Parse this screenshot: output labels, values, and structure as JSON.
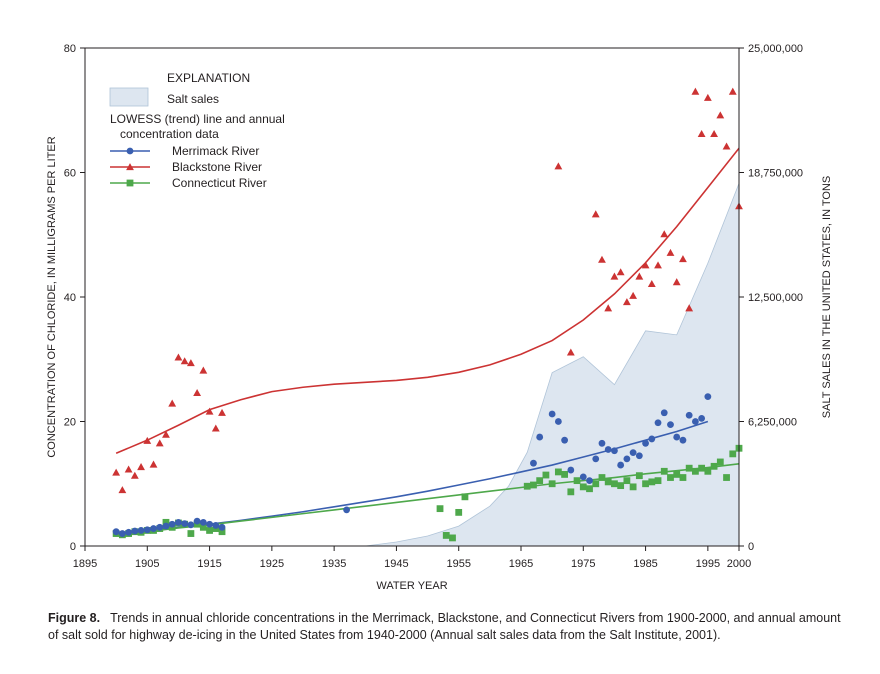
{
  "chart_data": {
    "type": "scatter",
    "xlabel": "WATER YEAR",
    "ylabel": "CONCENTRATION OF CHLORIDE, IN MILLIGRAMS PER LITER",
    "y2label": "SALT SALES IN THE UNITED STATES, IN TONS",
    "xlim": [
      1895,
      2000
    ],
    "ylim": [
      0,
      80
    ],
    "y2lim": [
      0,
      25000000
    ],
    "x_ticks": [
      1895,
      1905,
      1915,
      1925,
      1935,
      1945,
      1955,
      1965,
      1975,
      1985,
      1995,
      2000
    ],
    "y_ticks": [
      0,
      20,
      40,
      60,
      80
    ],
    "y2_ticks": [
      "0",
      "6,250,000",
      "12,500,000",
      "18,750,000",
      "25,000,000"
    ],
    "grid": false,
    "legend": {
      "title": "EXPLANATION",
      "area_label": "Salt sales",
      "lowess_label_1": "LOWESS (trend) line and annual",
      "lowess_label_2": "concentration data",
      "placement": "top-left"
    },
    "salt_sales": {
      "name": "Salt sales",
      "color": "#dde6f0",
      "edge": "#b0c4d8",
      "x": [
        1940,
        1945,
        1950,
        1955,
        1960,
        1963,
        1966,
        1970,
        1975,
        1980,
        1985,
        1990,
        1995,
        2000
      ],
      "y": [
        0,
        200000,
        500000,
        1000000,
        2000000,
        3000000,
        4700000,
        8700000,
        9500000,
        8100000,
        10800000,
        10600000,
        14200000,
        18200000
      ]
    },
    "series": [
      {
        "name": "Merrimack River",
        "color": "#3a5fb0",
        "marker": "circle",
        "x": [
          1900,
          1901,
          1902,
          1903,
          1904,
          1905,
          1906,
          1907,
          1908,
          1909,
          1910,
          1911,
          1912,
          1913,
          1914,
          1915,
          1916,
          1917,
          1937,
          1967,
          1968,
          1970,
          1971,
          1972,
          1973,
          1975,
          1976,
          1977,
          1978,
          1979,
          1980,
          1981,
          1982,
          1983,
          1984,
          1985,
          1986,
          1987,
          1988,
          1989,
          1990,
          1991,
          1992,
          1993,
          1994,
          1995
        ],
        "y": [
          2.3,
          2.0,
          2.2,
          2.4,
          2.5,
          2.6,
          2.8,
          3.0,
          3.2,
          3.5,
          3.8,
          3.6,
          3.4,
          4.0,
          3.8,
          3.5,
          3.3,
          3.0,
          5.8,
          13.3,
          17.5,
          21.2,
          20.0,
          17.0,
          12.2,
          11.1,
          10.5,
          14.0,
          16.5,
          15.5,
          15.3,
          13.0,
          14.0,
          15.0,
          14.5,
          16.5,
          17.2,
          19.8,
          21.4,
          19.5,
          17.5,
          17.0,
          21.0,
          20.0,
          20.5,
          24.0
        ],
        "trend_x": [
          1900,
          1905,
          1910,
          1915,
          1920,
          1925,
          1930,
          1935,
          1940,
          1945,
          1950,
          1955,
          1960,
          1965,
          1970,
          1975,
          1980,
          1985,
          1990,
          1995
        ],
        "trend_y": [
          2.0,
          2.5,
          3.0,
          3.5,
          4.1,
          4.8,
          5.5,
          6.3,
          7.1,
          7.9,
          8.8,
          9.8,
          10.8,
          11.9,
          13.0,
          14.3,
          15.6,
          17.0,
          18.4,
          20.0
        ]
      },
      {
        "name": "Blackstone River",
        "color": "#cc3333",
        "marker": "triangle",
        "x": [
          1900,
          1901,
          1902,
          1903,
          1904,
          1905,
          1906,
          1907,
          1908,
          1909,
          1910,
          1911,
          1912,
          1913,
          1914,
          1915,
          1916,
          1917,
          1971,
          1973,
          1977,
          1978,
          1979,
          1980,
          1981,
          1982,
          1983,
          1984,
          1985,
          1986,
          1987,
          1988,
          1989,
          1990,
          1991,
          1992,
          1993,
          1994,
          1995,
          1996,
          1997,
          1998,
          1999,
          2000
        ],
        "y": [
          11.8,
          9.0,
          12.3,
          11.3,
          12.7,
          16.9,
          13.1,
          16.5,
          17.9,
          22.9,
          30.3,
          29.7,
          29.4,
          24.6,
          28.2,
          21.6,
          18.9,
          21.4,
          61.0,
          31.1,
          53.3,
          46.0,
          38.2,
          43.3,
          44.0,
          39.2,
          40.2,
          43.3,
          45.1,
          42.1,
          45.1,
          50.1,
          47.1,
          42.4,
          46.1,
          38.2,
          73.0,
          66.2,
          72.0,
          66.2,
          69.2,
          64.2,
          73.0,
          54.6
        ],
        "trend_x": [
          1900,
          1905,
          1910,
          1915,
          1920,
          1925,
          1930,
          1935,
          1940,
          1945,
          1950,
          1955,
          1960,
          1965,
          1970,
          1975,
          1980,
          1985,
          1990,
          1995,
          2000
        ],
        "trend_y": [
          14.9,
          17.0,
          19.4,
          21.9,
          23.5,
          24.8,
          25.5,
          26.0,
          26.3,
          26.6,
          27.1,
          27.9,
          29.1,
          30.8,
          33.0,
          36.3,
          40.5,
          45.5,
          51.3,
          57.6,
          63.9
        ]
      },
      {
        "name": "Connecticut River",
        "color": "#4ea84b",
        "marker": "square",
        "x": [
          1900,
          1901,
          1902,
          1903,
          1904,
          1905,
          1906,
          1907,
          1908,
          1909,
          1910,
          1911,
          1912,
          1913,
          1914,
          1915,
          1916,
          1917,
          1952,
          1953,
          1954,
          1955,
          1956,
          1966,
          1967,
          1968,
          1969,
          1970,
          1971,
          1972,
          1973,
          1974,
          1975,
          1976,
          1977,
          1978,
          1979,
          1980,
          1981,
          1982,
          1983,
          1984,
          1985,
          1986,
          1987,
          1988,
          1989,
          1990,
          1991,
          1992,
          1993,
          1994,
          1995,
          1996,
          1997,
          1998,
          1999,
          2000
        ],
        "y": [
          2.0,
          1.8,
          2.0,
          2.3,
          2.2,
          2.5,
          2.5,
          2.8,
          3.8,
          3.0,
          3.7,
          3.5,
          2.0,
          3.5,
          3.0,
          2.5,
          2.8,
          2.3,
          6.0,
          1.7,
          1.3,
          5.4,
          7.9,
          9.6,
          9.8,
          10.5,
          11.4,
          10.0,
          11.9,
          11.5,
          8.7,
          10.5,
          9.5,
          9.2,
          10.0,
          11.0,
          10.3,
          10.0,
          9.7,
          10.5,
          9.5,
          11.3,
          10.0,
          10.3,
          10.5,
          12.0,
          11.0,
          11.5,
          11.0,
          12.5,
          12.0,
          12.5,
          12.0,
          12.8,
          13.5,
          11.0,
          14.8,
          15.7
        ],
        "trend_x": [
          1900,
          1905,
          1910,
          1915,
          1920,
          1925,
          1930,
          1935,
          1940,
          1945,
          1950,
          1955,
          1960,
          1965,
          1970,
          1975,
          1980,
          1985,
          1990,
          1995,
          2000
        ],
        "trend_y": [
          1.8,
          2.3,
          2.9,
          3.4,
          4.0,
          4.6,
          5.2,
          5.8,
          6.4,
          7.0,
          7.6,
          8.2,
          8.8,
          9.4,
          10.0,
          10.5,
          11.0,
          11.6,
          12.1,
          12.6,
          13.2
        ]
      }
    ]
  },
  "caption": {
    "label": "Figure 8.",
    "text": "Trends in annual chloride concentrations in the Merrimack, Blackstone, and Connecticut Rivers from 1900-2000, and annual amount of salt sold for highway de-icing in the United States from 1940-2000 (Annual salt sales data from the Salt Institute, 2001)."
  }
}
